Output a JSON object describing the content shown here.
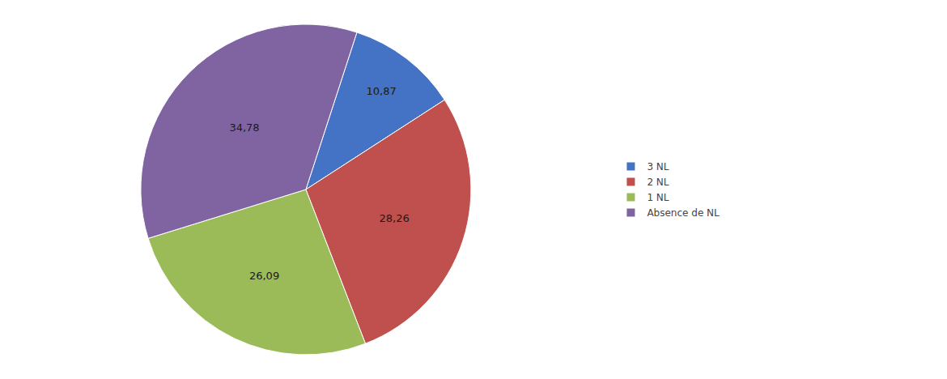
{
  "chart_data": {
    "type": "pie",
    "categories": [
      "3 NL",
      "2 NL",
      "1 NL",
      "Absence de NL"
    ],
    "values": [
      10.87,
      28.26,
      26.09,
      34.78
    ],
    "value_labels": [
      "10,87",
      "28,26",
      "26,09",
      "34,78"
    ],
    "colors": [
      "#4472C4",
      "#C0504D",
      "#9BBB59",
      "#8064A2"
    ],
    "data_labels": true,
    "legend": "right"
  }
}
